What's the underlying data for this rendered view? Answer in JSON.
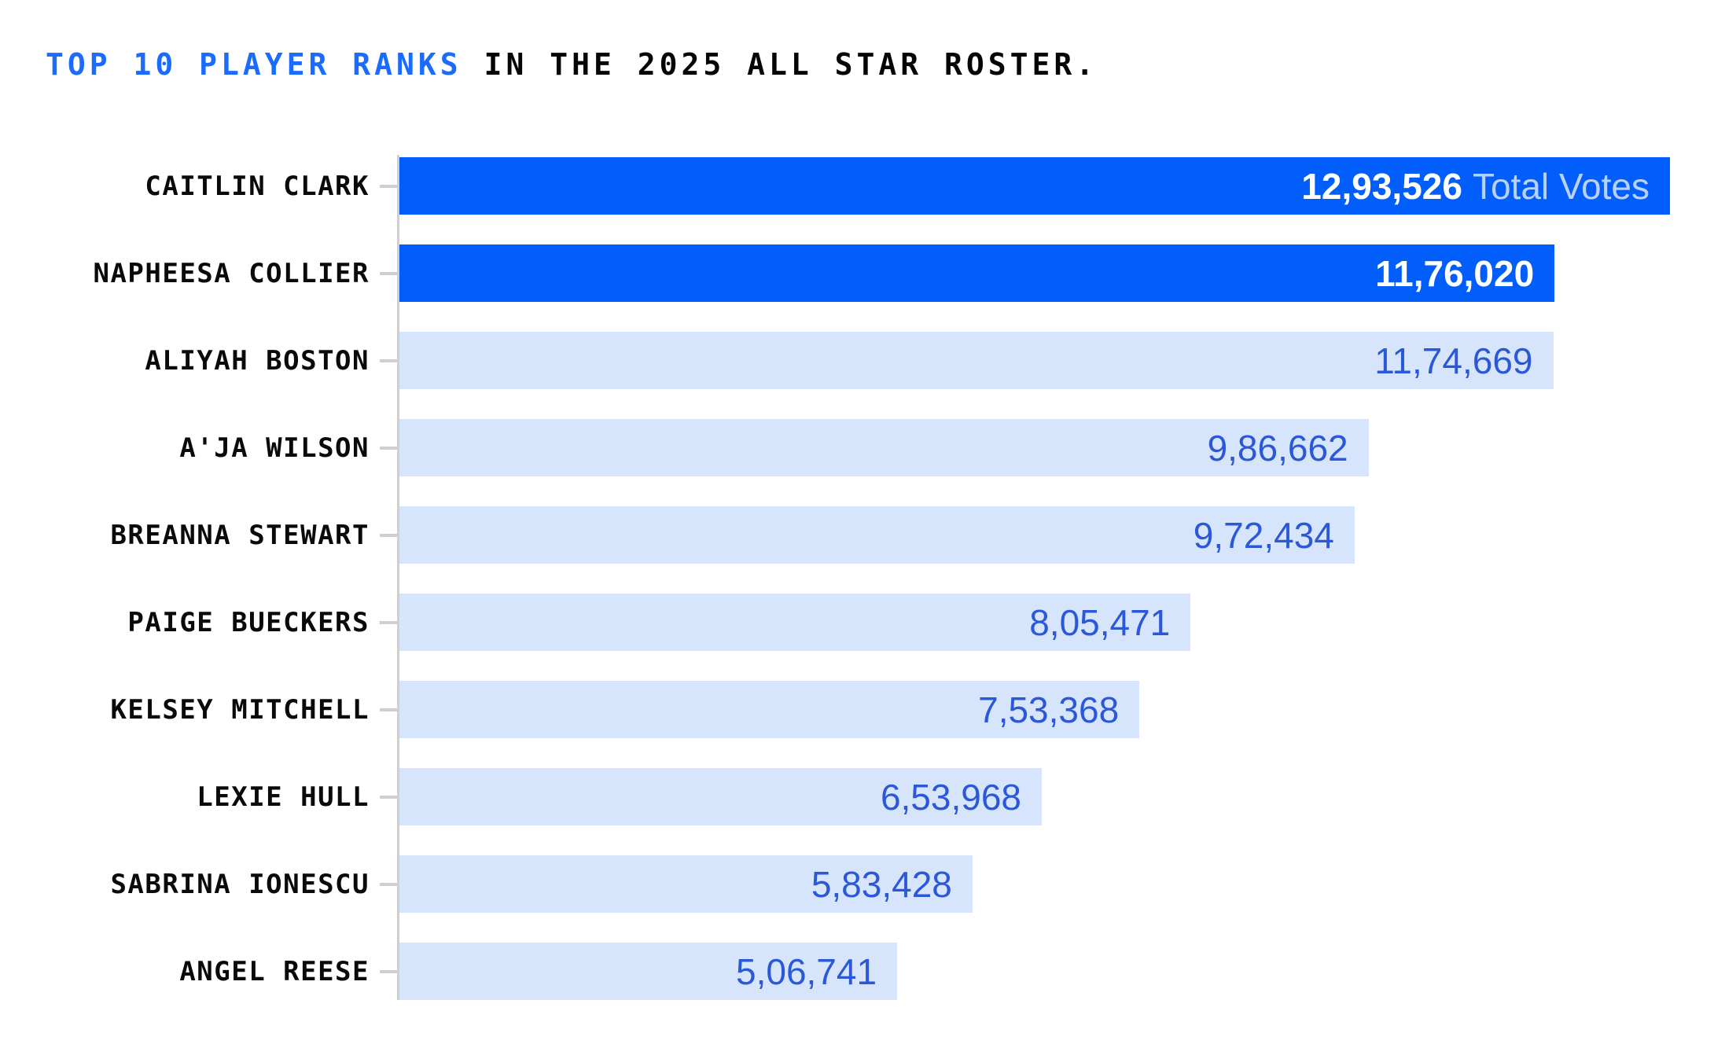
{
  "title": {
    "highlight": "TOP 10 PLAYER RANKS",
    "rest": " IN THE 2025 ALL STAR ROSTER."
  },
  "colors": {
    "accent_bar": "#015EFB",
    "light_bar": "#D6E4FC",
    "value_blue": "#2B58D8",
    "title_blue": "#1B6CFE",
    "axis_gray": "#CFCFCF",
    "label_black": "#0A0A0A",
    "background": "#FFFFFF"
  },
  "chart_data": {
    "type": "bar",
    "orientation": "horizontal",
    "title": "TOP 10 PLAYER RANKS IN THE 2025 ALL STAR ROSTER.",
    "xlabel": "",
    "ylabel": "",
    "xlim": [
      0,
      1293526
    ],
    "grid": "off",
    "legend": "none",
    "number_format": "indian-grouping",
    "categories": [
      "CAITLIN CLARK",
      "NAPHEESA COLLIER",
      "ALIYAH BOSTON",
      "A'JA WILSON",
      "BREANNA STEWART",
      "PAIGE BUECKERS",
      "KELSEY MITCHELL",
      "LEXIE HULL",
      "SABRINA IONESCU",
      "ANGEL REESE"
    ],
    "values": [
      1293526,
      1176020,
      1174669,
      986662,
      972434,
      805471,
      753368,
      653968,
      583428,
      506741
    ],
    "value_labels": [
      "12,93,526",
      "11,76,020",
      "11,74,669",
      "9,86,662",
      "9,72,434",
      "8,05,471",
      "7,53,368",
      "6,53,968",
      "5,83,428",
      "5,06,741"
    ],
    "highlighted_indices": [
      0,
      1
    ],
    "first_value_suffix": "Total Votes"
  }
}
